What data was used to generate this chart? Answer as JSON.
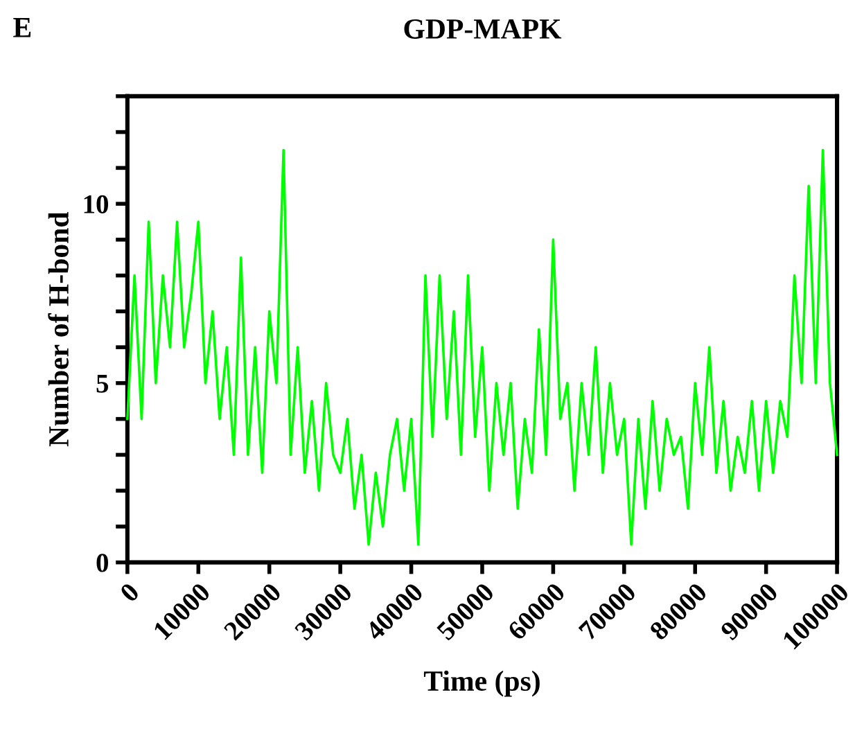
{
  "chart_data": {
    "type": "line",
    "title": "GDP-MAPK",
    "xlabel": "Time (ps)",
    "ylabel": "Number of H-bond",
    "annotations": [
      "E"
    ],
    "x": [
      0,
      1000,
      2000,
      3000,
      4000,
      5000,
      6000,
      7000,
      8000,
      9000,
      10000,
      11000,
      12000,
      13000,
      14000,
      15000,
      16000,
      17000,
      18000,
      19000,
      20000,
      21000,
      22000,
      23000,
      24000,
      25000,
      26000,
      27000,
      28000,
      29000,
      30000,
      31000,
      32000,
      33000,
      34000,
      35000,
      36000,
      37000,
      38000,
      39000,
      40000,
      41000,
      42000,
      43000,
      44000,
      45000,
      46000,
      47000,
      48000,
      49000,
      50000,
      51000,
      52000,
      53000,
      54000,
      55000,
      56000,
      57000,
      58000,
      59000,
      60000,
      61000,
      62000,
      63000,
      64000,
      65000,
      66000,
      67000,
      68000,
      69000,
      70000,
      71000,
      72000,
      73000,
      74000,
      75000,
      76000,
      77000,
      78000,
      79000,
      80000,
      81000,
      82000,
      83000,
      84000,
      85000,
      86000,
      87000,
      88000,
      89000,
      90000,
      91000,
      92000,
      93000,
      94000,
      95000,
      96000,
      97000,
      98000,
      99000,
      100000
    ],
    "series": [
      {
        "color": "#00ff00",
        "values": [
          4,
          8,
          4,
          9.5,
          5,
          8,
          6,
          9.5,
          6,
          7.5,
          9.5,
          5,
          7,
          4,
          6,
          3,
          8.5,
          3,
          6,
          2.5,
          7,
          5,
          11.5,
          3,
          6,
          2.5,
          4.5,
          2,
          5,
          3,
          2.5,
          4,
          1.5,
          3,
          0.5,
          2.5,
          1,
          3,
          4,
          2,
          4,
          0.5,
          8,
          3.5,
          8,
          4,
          7,
          3,
          8,
          3.5,
          6,
          2,
          5,
          3,
          5,
          1.5,
          4,
          2.5,
          6.5,
          3,
          9,
          4,
          5,
          2,
          5,
          3,
          6,
          2.5,
          5,
          3,
          4,
          0.5,
          4,
          1.5,
          4.5,
          2,
          4,
          3,
          3.5,
          1.5,
          5,
          3,
          6,
          2.5,
          4.5,
          2,
          3.5,
          2.5,
          4.5,
          2,
          4.5,
          2.5,
          4.5,
          3.5,
          8,
          5,
          10.5,
          5,
          11.5,
          5,
          3
        ]
      }
    ],
    "xlim": [
      0,
      100000
    ],
    "xticks": [
      0,
      10000,
      20000,
      30000,
      40000,
      50000,
      60000,
      70000,
      80000,
      90000,
      100000
    ],
    "ylim": [
      0,
      13
    ],
    "yticks": [
      0,
      {
        "value": 1,
        "label": null
      },
      {
        "value": 2,
        "label": null
      },
      {
        "value": 3,
        "label": null
      },
      {
        "value": 4,
        "label": null
      },
      5,
      {
        "value": 6,
        "label": null
      },
      {
        "value": 7,
        "label": null
      },
      {
        "value": 8,
        "label": null
      },
      {
        "value": 9,
        "label": null
      },
      10,
      {
        "value": 11,
        "label": null
      },
      {
        "value": 12,
        "label": null
      },
      {
        "value": 13,
        "label": null
      }
    ],
    "grid": false,
    "legend": false,
    "marker": "none",
    "line_style": "solid"
  }
}
